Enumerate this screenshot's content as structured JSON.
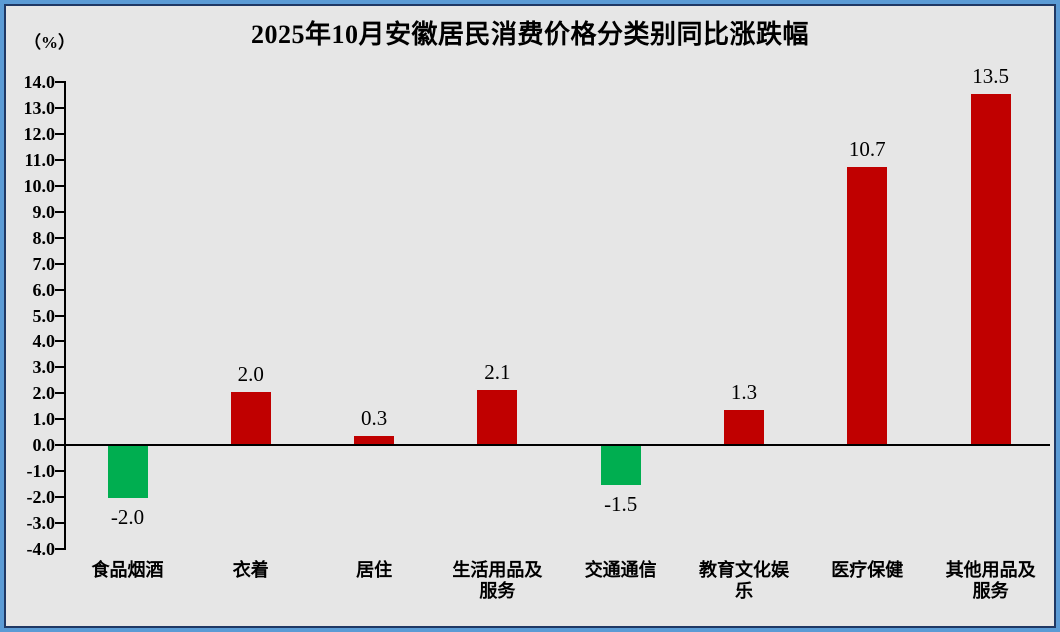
{
  "title": "2025年10月安徽居民消费价格分类别同比涨跌幅",
  "unit_label": "（%）",
  "colors": {
    "background": "#E6E6E6",
    "border_outer": "#5B9BD5",
    "border_inner": "#1F3864",
    "axis": "#000000",
    "positive_bar": "#C00000",
    "negative_bar": "#00AE50"
  },
  "chart_data": {
    "type": "bar",
    "title": "2025年10月安徽居民消费价格分类别同比涨跌幅",
    "ylabel": "（%）",
    "categories": [
      "食品烟酒",
      "衣着",
      "居住",
      "生活用品及服务",
      "交通通信",
      "教育文化娱乐",
      "医疗保健",
      "其他用品及服务"
    ],
    "values": [
      -2.0,
      2.0,
      0.3,
      2.1,
      -1.5,
      1.3,
      10.7,
      13.5
    ],
    "value_labels": [
      "-2.0",
      "2.0",
      "0.3",
      "2.1",
      "-1.5",
      "1.3",
      "10.7",
      "13.5"
    ],
    "bar_colors": [
      "#00AE50",
      "#C00000",
      "#C00000",
      "#C00000",
      "#00AE50",
      "#C00000",
      "#C00000",
      "#C00000"
    ],
    "ytick_labels": [
      "14.0",
      "13.0",
      "12.0",
      "11.0",
      "10.0",
      "9.0",
      "8.0",
      "7.0",
      "6.0",
      "5.0",
      "4.0",
      "3.0",
      "2.0",
      "1.0",
      "0.0",
      "-1.0",
      "-2.0",
      "-3.0",
      "-4.0"
    ],
    "ylim": [
      -4.0,
      14.0
    ],
    "ytick_step": 1.0,
    "grid": false,
    "legend": false
  }
}
